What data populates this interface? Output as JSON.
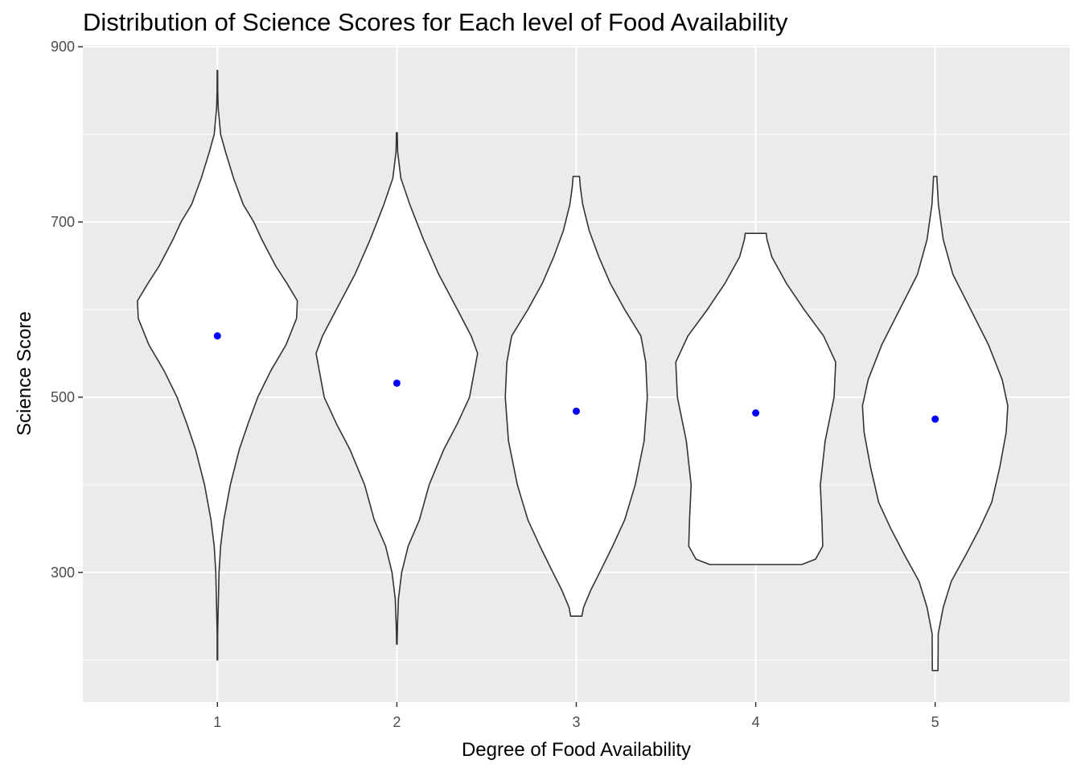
{
  "chart_data": {
    "type": "violin",
    "title": "Distribution of Science Scores for Each level of Food Availability",
    "xlabel": "Degree of Food Availability",
    "ylabel": "Science Score",
    "categories": [
      "1",
      "2",
      "3",
      "4",
      "5"
    ],
    "ylim": [
      152,
      902
    ],
    "y_ticks": [
      300,
      500,
      700,
      900
    ],
    "grid": true,
    "panel_color": "#ebebeb",
    "violin_fill": "#ffffff",
    "violin_stroke": "#333333",
    "mean_point_color": "#0000ff",
    "means": [
      570,
      516,
      484,
      482,
      475
    ],
    "violins": [
      {
        "category": "1",
        "min": 200,
        "max": 873,
        "profile": [
          [
            200,
            0.003
          ],
          [
            230,
            0.003
          ],
          [
            260,
            0.01
          ],
          [
            300,
            0.02
          ],
          [
            330,
            0.04
          ],
          [
            360,
            0.08
          ],
          [
            400,
            0.16
          ],
          [
            440,
            0.27
          ],
          [
            470,
            0.38
          ],
          [
            500,
            0.5
          ],
          [
            530,
            0.66
          ],
          [
            560,
            0.85
          ],
          [
            590,
            0.98
          ],
          [
            610,
            0.99
          ],
          [
            630,
            0.86
          ],
          [
            650,
            0.72
          ],
          [
            680,
            0.55
          ],
          [
            700,
            0.45
          ],
          [
            720,
            0.32
          ],
          [
            750,
            0.2
          ],
          [
            780,
            0.1
          ],
          [
            800,
            0.04
          ],
          [
            830,
            0.01
          ],
          [
            850,
            0.004
          ],
          [
            873,
            0.003
          ]
        ]
      },
      {
        "category": "2",
        "min": 218,
        "max": 802,
        "profile": [
          [
            218,
            0.003
          ],
          [
            240,
            0.008
          ],
          [
            270,
            0.02
          ],
          [
            300,
            0.06
          ],
          [
            330,
            0.14
          ],
          [
            360,
            0.28
          ],
          [
            400,
            0.4
          ],
          [
            440,
            0.58
          ],
          [
            470,
            0.75
          ],
          [
            500,
            0.9
          ],
          [
            530,
            0.96
          ],
          [
            550,
            1.0
          ],
          [
            570,
            0.92
          ],
          [
            600,
            0.75
          ],
          [
            640,
            0.52
          ],
          [
            680,
            0.33
          ],
          [
            720,
            0.16
          ],
          [
            750,
            0.05
          ],
          [
            780,
            0.01
          ],
          [
            802,
            0.005
          ]
        ]
      },
      {
        "category": "3",
        "min": 250,
        "max": 752,
        "profile": [
          [
            250,
            0.07
          ],
          [
            260,
            0.09
          ],
          [
            280,
            0.18
          ],
          [
            300,
            0.29
          ],
          [
            330,
            0.45
          ],
          [
            360,
            0.6
          ],
          [
            400,
            0.73
          ],
          [
            450,
            0.84
          ],
          [
            500,
            0.88
          ],
          [
            540,
            0.86
          ],
          [
            570,
            0.8
          ],
          [
            600,
            0.6
          ],
          [
            630,
            0.42
          ],
          [
            660,
            0.28
          ],
          [
            690,
            0.16
          ],
          [
            720,
            0.08
          ],
          [
            740,
            0.05
          ],
          [
            752,
            0.04
          ]
        ]
      },
      {
        "category": "4",
        "min": 309,
        "max": 687,
        "profile": [
          [
            309,
            0.57
          ],
          [
            315,
            0.74
          ],
          [
            330,
            0.83
          ],
          [
            360,
            0.82
          ],
          [
            400,
            0.8
          ],
          [
            450,
            0.86
          ],
          [
            500,
            0.97
          ],
          [
            540,
            0.99
          ],
          [
            570,
            0.84
          ],
          [
            600,
            0.6
          ],
          [
            630,
            0.38
          ],
          [
            660,
            0.2
          ],
          [
            680,
            0.14
          ],
          [
            687,
            0.13
          ]
        ]
      },
      {
        "category": "5",
        "min": 188,
        "max": 752,
        "profile": [
          [
            188,
            0.035
          ],
          [
            230,
            0.038
          ],
          [
            260,
            0.1
          ],
          [
            290,
            0.2
          ],
          [
            320,
            0.38
          ],
          [
            350,
            0.55
          ],
          [
            380,
            0.7
          ],
          [
            420,
            0.8
          ],
          [
            460,
            0.88
          ],
          [
            490,
            0.9
          ],
          [
            520,
            0.83
          ],
          [
            560,
            0.66
          ],
          [
            600,
            0.44
          ],
          [
            640,
            0.22
          ],
          [
            680,
            0.1
          ],
          [
            720,
            0.04
          ],
          [
            752,
            0.02
          ]
        ]
      }
    ]
  }
}
